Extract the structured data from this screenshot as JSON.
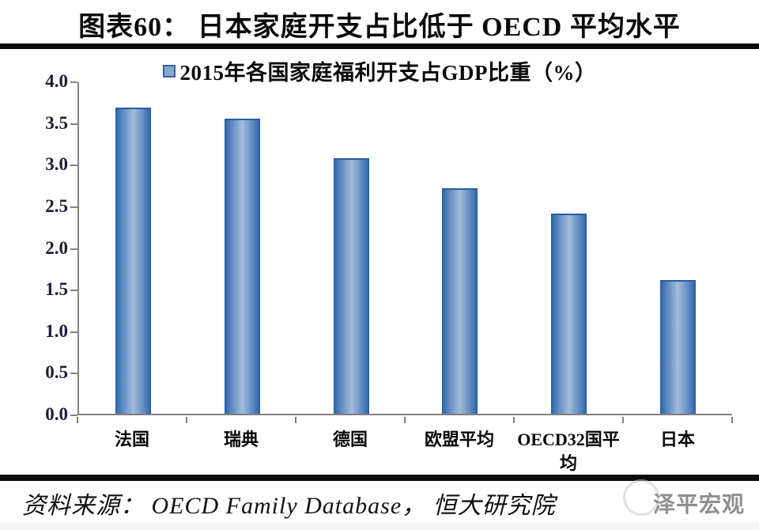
{
  "header": {
    "title": "图表60： 日本家庭开支占比低于 OECD 平均水平"
  },
  "chart_data": {
    "type": "bar",
    "legend": "2015年各国家庭福利开支占GDP比重（%）",
    "legend_position": "top-center",
    "categories": [
      "法国",
      "瑞典",
      "德国",
      "欧盟平均",
      "OECD32国平均",
      "日本"
    ],
    "values": [
      3.68,
      3.54,
      3.07,
      2.71,
      2.4,
      1.61
    ],
    "title": "2015年各国家庭福利开支占GDP比重（%）",
    "xlabel": "",
    "ylabel": "",
    "ylim": [
      0,
      4.0
    ],
    "ytick_step": 0.5,
    "grid": false,
    "bar_edge_color": "#2e67ae",
    "bar_center_color": "#a3bcda",
    "axis_color": "#808080"
  },
  "footer": {
    "source": "资料来源： OECD Family Database， 恒大研究院",
    "watermark": "泽平宏观"
  }
}
